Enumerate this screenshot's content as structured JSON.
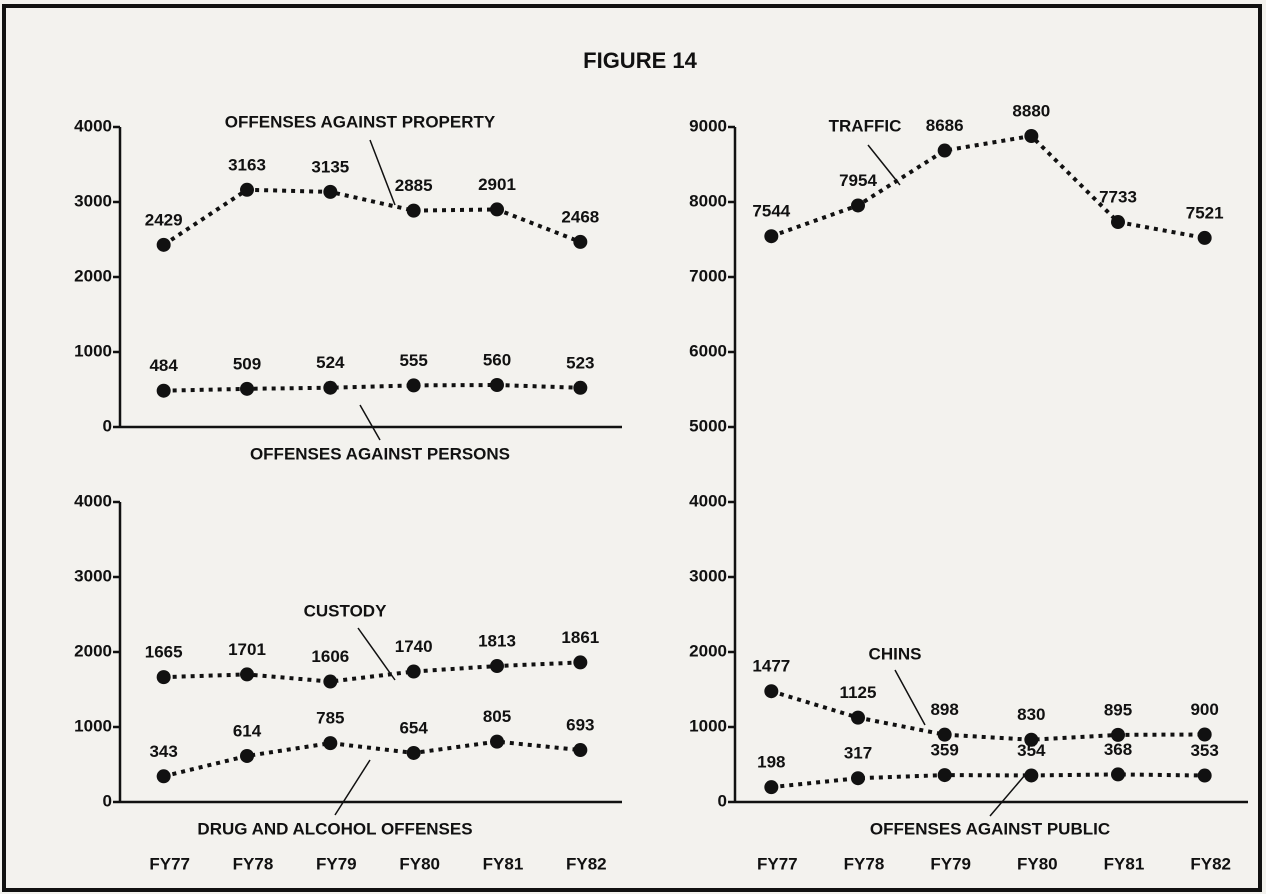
{
  "title": "FIGURE 14",
  "chart_data": [
    {
      "type": "line",
      "ylim": [
        0,
        4000
      ],
      "yticks": [
        0,
        1000,
        2000,
        3000,
        4000
      ],
      "series": [
        {
          "name": "OFFENSES AGAINST PROPERTY",
          "color": "#111111",
          "values": [
            2429,
            3163,
            3135,
            2885,
            2901,
            2468
          ]
        },
        {
          "name": "OFFENSES AGAINST PERSONS",
          "color": "#111111",
          "values": [
            484,
            509,
            524,
            555,
            560,
            523
          ]
        }
      ]
    },
    {
      "type": "line",
      "ylim": [
        0,
        9000
      ],
      "yticks": [
        0,
        1000,
        2000,
        3000,
        4000,
        5000,
        6000,
        7000,
        8000,
        9000
      ],
      "categories": [
        "FY77",
        "FY78",
        "FY79",
        "FY80",
        "FY81",
        "FY82"
      ],
      "series": [
        {
          "name": "TRAFFIC",
          "color": "#111111",
          "values": [
            7544,
            7954,
            8686,
            8880,
            7733,
            7521
          ]
        },
        {
          "name": "CHINS",
          "color": "#111111",
          "values": [
            1477,
            1125,
            898,
            830,
            895,
            900
          ]
        },
        {
          "name": "OFFENSES AGAINST PUBLIC",
          "color": "#111111",
          "values": [
            198,
            317,
            359,
            354,
            368,
            353
          ]
        }
      ]
    },
    {
      "type": "line",
      "ylim": [
        0,
        4000
      ],
      "yticks": [
        0,
        1000,
        2000,
        3000,
        4000
      ],
      "categories": [
        "FY77",
        "FY78",
        "FY79",
        "FY80",
        "FY81",
        "FY82"
      ],
      "series": [
        {
          "name": "CUSTODY",
          "color": "#111111",
          "values": [
            1665,
            1701,
            1606,
            1740,
            1813,
            1861
          ]
        },
        {
          "name": "DRUG AND ALCOHOL OFFENSES",
          "color": "#111111",
          "values": [
            343,
            614,
            785,
            654,
            805,
            693
          ]
        }
      ]
    }
  ]
}
